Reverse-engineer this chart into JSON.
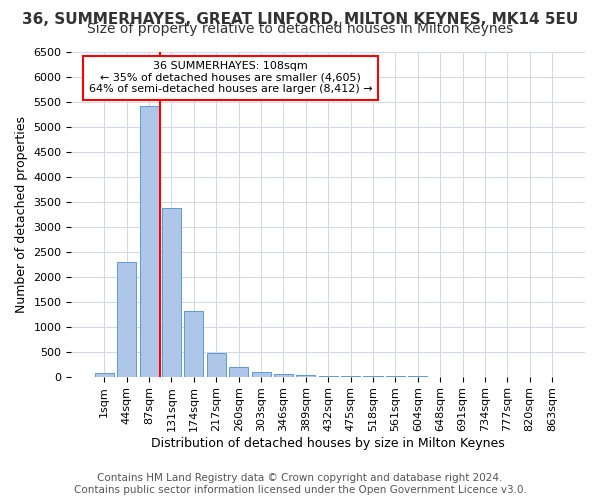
{
  "title1": "36, SUMMERHAYES, GREAT LINFORD, MILTON KEYNES, MK14 5EU",
  "title2": "Size of property relative to detached houses in Milton Keynes",
  "xlabel": "Distribution of detached houses by size in Milton Keynes",
  "ylabel": "Number of detached properties",
  "footer1": "Contains HM Land Registry data © Crown copyright and database right 2024.",
  "footer2": "Contains public sector information licensed under the Open Government Licence v3.0.",
  "annotation_line1": "36 SUMMERHAYES: 108sqm",
  "annotation_line2": "← 35% of detached houses are smaller (4,605)",
  "annotation_line3": "64% of semi-detached houses are larger (8,412) →",
  "bar_labels": [
    "1sqm",
    "44sqm",
    "87sqm",
    "131sqm",
    "174sqm",
    "217sqm",
    "260sqm",
    "303sqm",
    "346sqm",
    "389sqm",
    "432sqm",
    "475sqm",
    "518sqm",
    "561sqm",
    "604sqm",
    "648sqm",
    "691sqm",
    "734sqm",
    "777sqm",
    "820sqm",
    "863sqm"
  ],
  "bar_values": [
    70,
    2300,
    5420,
    3380,
    1310,
    480,
    200,
    90,
    50,
    30,
    20,
    10,
    5,
    3,
    2,
    1,
    1,
    1,
    0,
    0,
    0
  ],
  "bar_color": "#aec6e8",
  "bar_edge_color": "#5b9bd5",
  "vline_x_index": 2.5,
  "vline_color": "red",
  "ylim": [
    0,
    6500
  ],
  "yticks": [
    0,
    500,
    1000,
    1500,
    2000,
    2500,
    3000,
    3500,
    4000,
    4500,
    5000,
    5500,
    6000,
    6500
  ],
  "bg_color": "#ffffff",
  "grid_color": "#d0d8e8",
  "title1_fontsize": 11,
  "title2_fontsize": 10,
  "axis_label_fontsize": 9,
  "tick_fontsize": 8,
  "footer_fontsize": 7.5
}
